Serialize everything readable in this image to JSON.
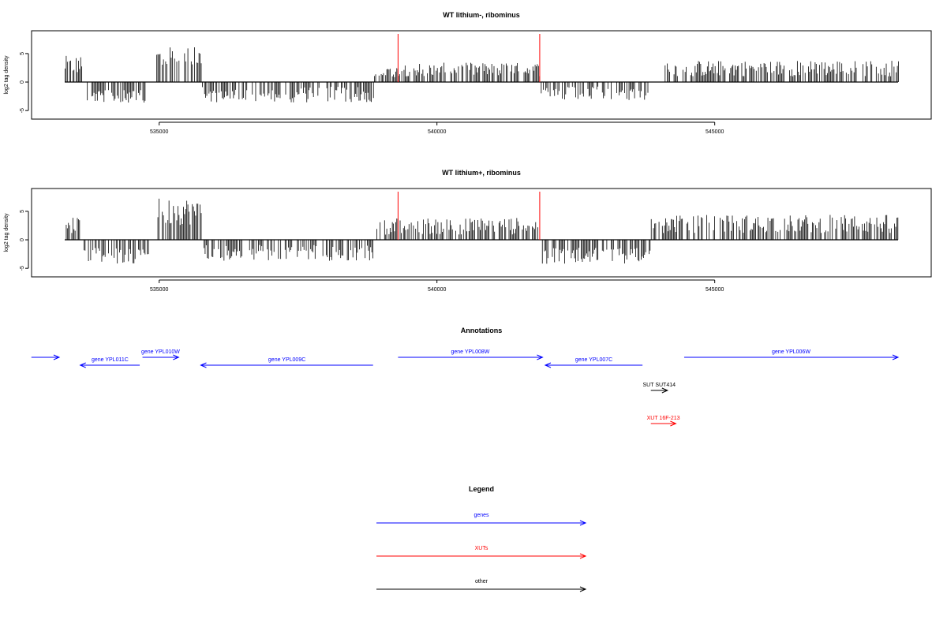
{
  "colors": {
    "gene": "#0000ff",
    "xut": "#ff0000",
    "other": "#000000",
    "marker": "#ff0000"
  },
  "chart_data": [
    {
      "type": "bar",
      "title": "WT lithium-, ribominus",
      "ylabel": "log2 tag density",
      "xlim": [
        533300,
        548300
      ],
      "ylim": [
        -6.5,
        9
      ],
      "xticks": [
        535000,
        540000,
        545000
      ],
      "yticks": [
        -5,
        0,
        5
      ],
      "markers": [
        539300,
        541850
      ],
      "segments": [
        {
          "start": 533300,
          "end": 533600,
          "sign": 1,
          "mean": 3.0,
          "jitter": 1.6
        },
        {
          "start": 533700,
          "end": 534800,
          "sign": -1,
          "mean": 2.5,
          "jitter": 1.1
        },
        {
          "start": 534950,
          "end": 535750,
          "sign": 1,
          "mean": 4.2,
          "jitter": 2.0
        },
        {
          "start": 535750,
          "end": 538850,
          "sign": -1,
          "mean": 2.2,
          "jitter": 1.4
        },
        {
          "start": 538850,
          "end": 539300,
          "sign": 1,
          "mean": 1.8,
          "jitter": 1.0
        },
        {
          "start": 539300,
          "end": 541850,
          "sign": 1,
          "mean": 2.2,
          "jitter": 1.2
        },
        {
          "start": 541850,
          "end": 543800,
          "sign": -1,
          "mean": 2.0,
          "jitter": 1.2
        },
        {
          "start": 544100,
          "end": 548300,
          "sign": 1,
          "mean": 2.4,
          "jitter": 1.4
        }
      ]
    },
    {
      "type": "bar",
      "title": "WT lithium+, ribominus",
      "ylabel": "log2 tag density",
      "xlim": [
        533300,
        548300
      ],
      "ylim": [
        -6.5,
        9
      ],
      "xticks": [
        535000,
        540000,
        545000
      ],
      "yticks": [
        -5,
        0,
        5
      ],
      "markers": [
        539300,
        541850
      ],
      "segments": [
        {
          "start": 533300,
          "end": 533600,
          "sign": 1,
          "mean": 2.6,
          "jitter": 1.5
        },
        {
          "start": 533600,
          "end": 534800,
          "sign": -1,
          "mean": 2.8,
          "jitter": 1.4
        },
        {
          "start": 534950,
          "end": 535800,
          "sign": 1,
          "mean": 5.0,
          "jitter": 2.4
        },
        {
          "start": 535800,
          "end": 538850,
          "sign": -1,
          "mean": 2.3,
          "jitter": 1.4
        },
        {
          "start": 538850,
          "end": 541850,
          "sign": 1,
          "mean": 2.4,
          "jitter": 1.5
        },
        {
          "start": 541850,
          "end": 543850,
          "sign": -1,
          "mean": 2.8,
          "jitter": 1.4
        },
        {
          "start": 543850,
          "end": 548300,
          "sign": 1,
          "mean": 2.8,
          "jitter": 1.6
        }
      ]
    }
  ],
  "annotations": {
    "title": "Annotations",
    "features": [
      {
        "label": "",
        "start": 532700,
        "end": 533200,
        "strand": "+",
        "type": "gene",
        "row": 1
      },
      {
        "label": "gene YPL011C",
        "start": 533580,
        "end": 534650,
        "strand": "-",
        "type": "gene",
        "row": 2
      },
      {
        "label": "gene YPL010W",
        "start": 534700,
        "end": 535350,
        "strand": "+",
        "type": "gene",
        "row": 1
      },
      {
        "label": "gene YPL009C",
        "start": 535750,
        "end": 538850,
        "strand": "-",
        "type": "gene",
        "row": 2
      },
      {
        "label": "gene YPL008W",
        "start": 539300,
        "end": 541900,
        "strand": "+",
        "type": "gene",
        "row": 1
      },
      {
        "label": "gene YPL007C",
        "start": 541950,
        "end": 543700,
        "strand": "-",
        "type": "gene",
        "row": 2
      },
      {
        "label": "gene YPL006W",
        "start": 544450,
        "end": 548300,
        "strand": "+",
        "type": "gene",
        "row": 1
      },
      {
        "label": "SUT SUT414",
        "start": 543850,
        "end": 544150,
        "strand": "+",
        "type": "other",
        "row": 3
      },
      {
        "label": "XUT 16F-213",
        "start": 543850,
        "end": 544300,
        "strand": "+",
        "type": "xut",
        "row": 4
      }
    ]
  },
  "legend": {
    "title": "Legend",
    "items": [
      {
        "label": "genes",
        "type": "gene"
      },
      {
        "label": "XUTs",
        "type": "xut"
      },
      {
        "label": "other",
        "type": "other"
      }
    ]
  }
}
